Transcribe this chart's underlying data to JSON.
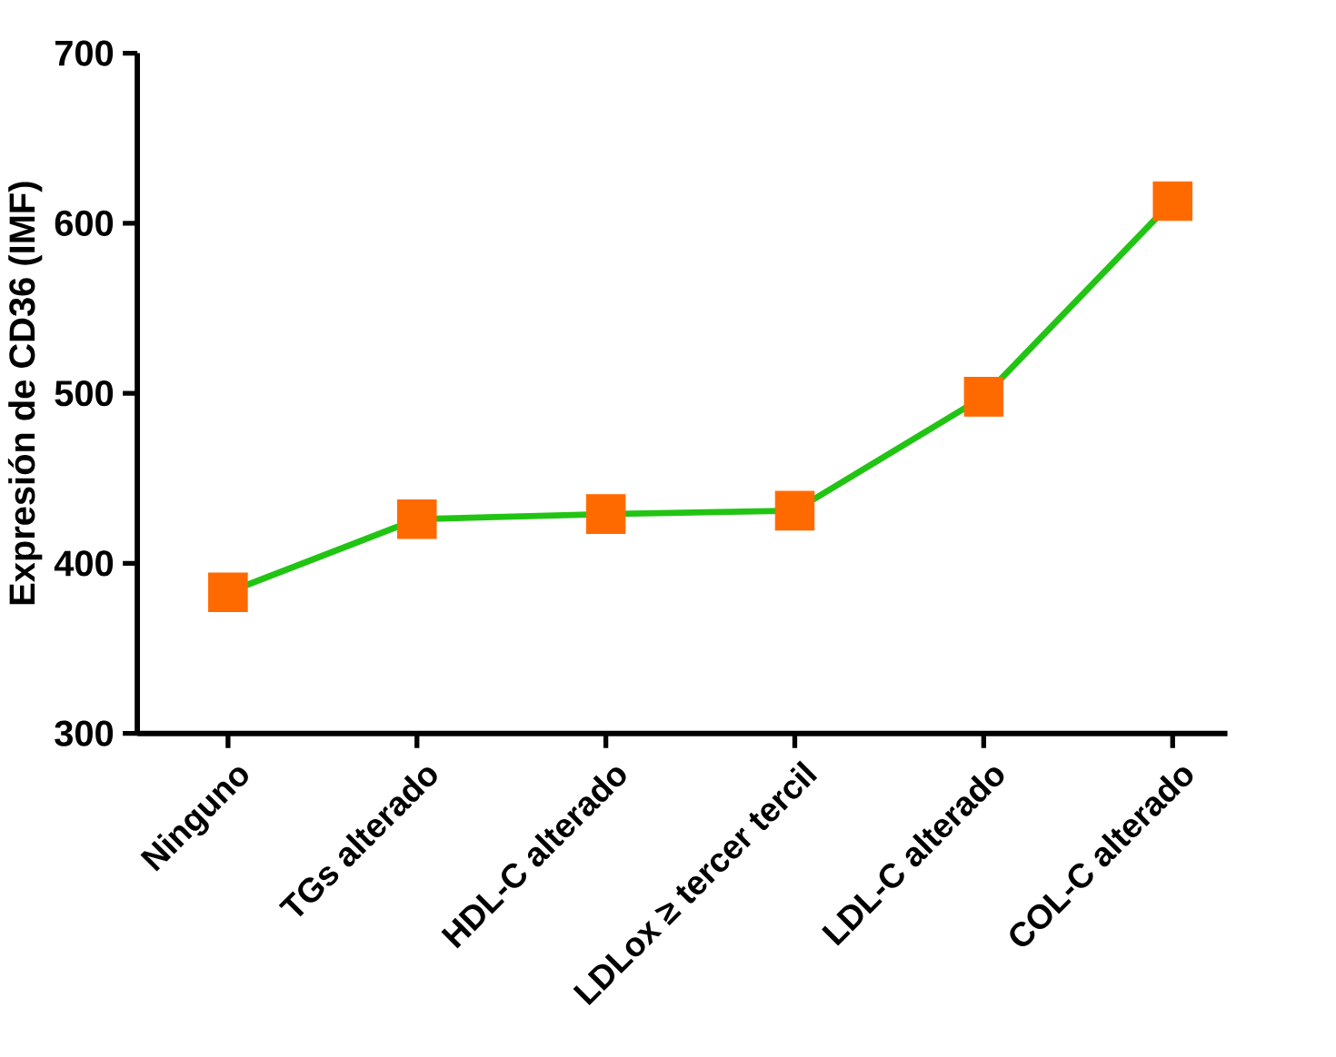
{
  "chart_data": {
    "type": "line",
    "ylabel": "Expresión de CD36 (IMF)",
    "categories": [
      "Ninguno",
      "TGs alterado",
      "HDL-C alterado",
      "LDLox ≥ tercer tercil",
      "LDL-C alterado",
      "COL-C alterado"
    ],
    "values": [
      383,
      426,
      429,
      431,
      498,
      613
    ],
    "color": "#22c414",
    "colors": [
      "#ff6a00",
      "#ff6a00",
      "#ff6a00",
      "#ff6a00",
      "#ff6a00",
      "#ff6a00"
    ],
    "marker": "square",
    "ylim": [
      300,
      700
    ],
    "yticks": [
      300,
      400,
      500,
      600,
      700
    ]
  }
}
